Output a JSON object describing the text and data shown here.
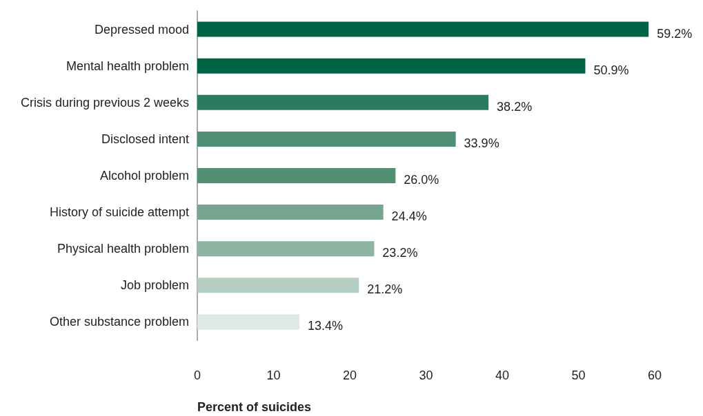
{
  "chart_data": {
    "type": "bar",
    "orientation": "horizontal",
    "xlabel": "Percent of suicides",
    "categories": [
      "Depressed mood",
      "Mental health problem",
      "Crisis during previous 2 weeks",
      "Disclosed intent",
      "Alcohol problem",
      "History of suicide attempt",
      "Physical health problem",
      "Job problem",
      "Other substance problem"
    ],
    "values": [
      59.2,
      50.9,
      38.2,
      33.9,
      26.0,
      24.4,
      23.2,
      21.2,
      13.4
    ],
    "value_labels": [
      "59.2%",
      "50.9%",
      "38.2%",
      "33.9%",
      "26.0%",
      "24.4%",
      "23.2%",
      "21.2%",
      "13.4%"
    ],
    "colors": [
      "#006446",
      "#006446",
      "#2a7b5f",
      "#4f8f73",
      "#529074",
      "#76a68f",
      "#8db5a1",
      "#b4cfc2",
      "#dfe9e4"
    ],
    "xlim": [
      0,
      60
    ],
    "xticks": [
      0,
      10,
      20,
      30,
      40,
      50,
      60
    ]
  }
}
